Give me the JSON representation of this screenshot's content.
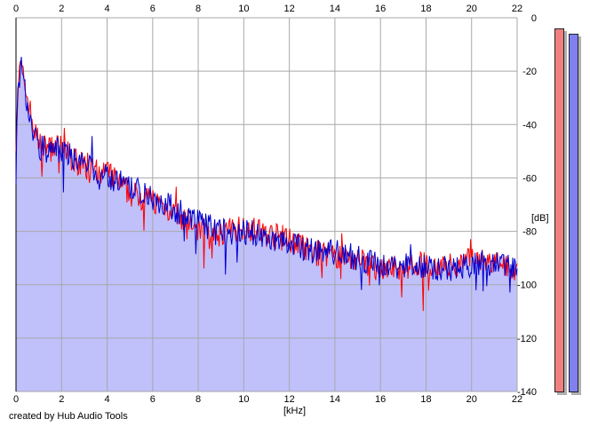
{
  "credit": "created by Hub Audio Tools",
  "colors": {
    "fill": "#c0c0fb",
    "left_channel": "#ff0000",
    "right_channel": "#0000d0",
    "grid": "#a8a8a8",
    "meter_left": "#f08080",
    "meter_right": "#8080f0"
  },
  "meters": {
    "left_level_db": -4,
    "right_level_db": -6
  },
  "chart_data": {
    "type": "area",
    "xlabel": "[kHz]",
    "ylabel": "[dB]",
    "xlim": [
      0,
      22
    ],
    "ylim": [
      -140,
      0
    ],
    "x_ticks": [
      "0",
      "2",
      "4",
      "6",
      "8",
      "10",
      "12",
      "14",
      "16",
      "18",
      "20",
      "22"
    ],
    "y_ticks": [
      "0",
      "-20",
      "-40",
      "-60",
      "-80",
      "-100",
      "-120",
      "-140"
    ],
    "grid": true,
    "series": [
      {
        "channel": "left",
        "x": [
          0,
          0.1,
          0.2,
          0.3,
          0.5,
          0.8,
          1,
          1.5,
          2,
          2.5,
          3,
          3.5,
          4,
          5,
          6,
          7,
          8,
          9,
          10,
          11,
          12,
          13,
          14,
          15,
          16,
          17,
          18,
          19,
          20,
          21,
          22
        ],
        "y": [
          -45,
          -25,
          -18,
          -22,
          -30,
          -42,
          -47,
          -49,
          -48,
          -53,
          -56,
          -58,
          -58,
          -66,
          -68,
          -73,
          -79,
          -81,
          -78,
          -81,
          -83,
          -88,
          -89,
          -91,
          -94,
          -93,
          -92,
          -93,
          -91,
          -92,
          -94
        ]
      },
      {
        "channel": "right",
        "x": [
          0,
          0.1,
          0.2,
          0.3,
          0.5,
          0.8,
          1,
          1.5,
          2,
          2.5,
          3,
          3.5,
          4,
          5,
          6,
          7,
          8,
          9,
          10,
          11,
          12,
          13,
          14,
          15,
          16,
          17,
          18,
          19,
          20,
          21,
          22
        ],
        "y": [
          -47,
          -27,
          -17,
          -24,
          -32,
          -44,
          -48,
          -50,
          -49,
          -52,
          -55,
          -57,
          -59,
          -64,
          -67,
          -72,
          -77,
          -80,
          -80,
          -82,
          -85,
          -87,
          -88,
          -90,
          -93,
          -93,
          -93,
          -94,
          -92,
          -92,
          -93
        ]
      }
    ]
  }
}
